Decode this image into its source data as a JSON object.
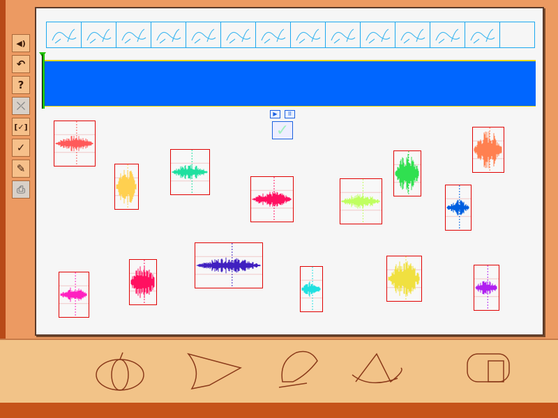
{
  "toolbar": {
    "items": [
      {
        "name": "sound-icon",
        "glyph": "◀)"
      },
      {
        "name": "undo-icon",
        "glyph": "↶"
      },
      {
        "name": "help-icon",
        "glyph": "?"
      },
      {
        "name": "cancel-icon",
        "glyph": "⤫"
      },
      {
        "name": "select-check-icon",
        "glyph": "[✓]"
      },
      {
        "name": "check-icon",
        "glyph": "✓"
      },
      {
        "name": "open-file-icon",
        "glyph": "✎"
      },
      {
        "name": "print-icon",
        "glyph": "⎙"
      }
    ]
  },
  "strip": {
    "animals": [
      "lion",
      "birds",
      "running-animals",
      "fish",
      "elephants",
      "kangaroo",
      "fish-bubbles",
      "cow",
      "bird-flight",
      "horse",
      "witch",
      "fairy",
      "leaf"
    ]
  },
  "controls": {
    "play": "▶",
    "pause": "II",
    "ok": "✓"
  },
  "colors": {
    "track": "#0066ff",
    "cursor": "#20c000",
    "card_border": "#e00000"
  },
  "waveforms": [
    {
      "color": "#ff5a5a",
      "orientation": "horizontal"
    },
    {
      "color": "#ffd050",
      "orientation": "vertical"
    },
    {
      "color": "#20e0a0",
      "orientation": "horizontal"
    },
    {
      "color": "#ff1060",
      "orientation": "horizontal"
    },
    {
      "color": "#c0ff60",
      "orientation": "horizontal"
    },
    {
      "color": "#30e050",
      "orientation": "vertical"
    },
    {
      "color": "#ff8050",
      "orientation": "vertical"
    },
    {
      "color": "#0060e0",
      "orientation": "horizontal"
    },
    {
      "color": "#ff20c0",
      "orientation": "horizontal"
    },
    {
      "color": "#ff1060",
      "orientation": "vertical"
    },
    {
      "color": "#4020c0",
      "orientation": "horizontal"
    },
    {
      "color": "#20e0e0",
      "orientation": "horizontal"
    },
    {
      "color": "#f0e040",
      "orientation": "vertical"
    },
    {
      "color": "#b020f0",
      "orientation": "horizontal"
    }
  ]
}
